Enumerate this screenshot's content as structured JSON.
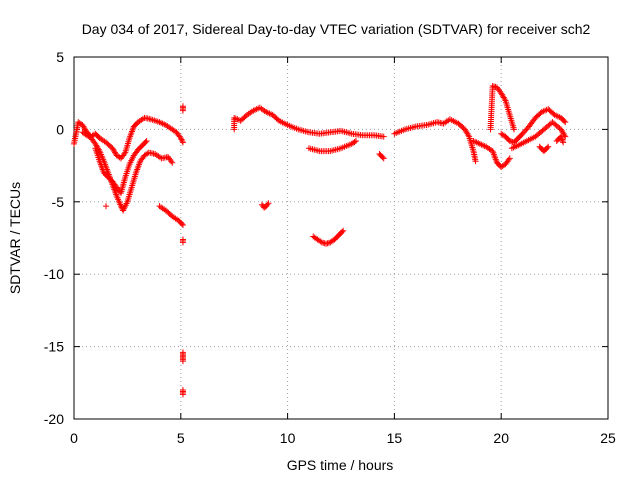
{
  "chart_data": {
    "type": "scatter",
    "title": "Day 034 of 2017, Sidereal Day-to-day VTEC variation (SDTVAR) for receiver sch2",
    "xlabel": "GPS time / hours",
    "ylabel": "SDTVAR / TECUs",
    "xlim": [
      0,
      25
    ],
    "ylim": [
      -20,
      5
    ],
    "xticks": [
      "0",
      "5",
      "10",
      "15",
      "20",
      "25"
    ],
    "yticks": [
      "5",
      "0",
      "-5",
      "-10",
      "-15",
      "-20"
    ],
    "grid": true,
    "marker": "+",
    "color": "#ff0000",
    "series": [
      {
        "name": "SDTVAR",
        "segments": [
          [
            [
              0,
              -1.0
            ],
            [
              0.2,
              0.5
            ],
            [
              0.4,
              0.3
            ],
            [
              0.6,
              -0.2
            ],
            [
              0.8,
              -0.5
            ],
            [
              1.0,
              -0.3
            ],
            [
              1.2,
              -0.6
            ],
            [
              1.5,
              -0.9
            ],
            [
              1.8,
              -1.3
            ],
            [
              2.0,
              -1.8
            ],
            [
              2.2,
              -2.0
            ],
            [
              2.4,
              -1.6
            ],
            [
              2.6,
              -0.6
            ],
            [
              2.8,
              0.2
            ],
            [
              3.0,
              0.5
            ],
            [
              3.3,
              0.8
            ],
            [
              3.6,
              0.7
            ],
            [
              4.0,
              0.5
            ],
            [
              4.3,
              0.3
            ],
            [
              4.6,
              0.0
            ],
            [
              4.8,
              -0.2
            ],
            [
              5.0,
              -0.6
            ],
            [
              5.1,
              -0.9
            ]
          ],
          [
            [
              0.4,
              -0.2
            ],
            [
              0.8,
              -0.6
            ],
            [
              1.0,
              -1.0
            ],
            [
              1.2,
              -1.5
            ],
            [
              1.4,
              -2.2
            ],
            [
              1.6,
              -3.0
            ],
            [
              1.8,
              -3.8
            ],
            [
              2.0,
              -4.6
            ],
            [
              2.2,
              -5.3
            ],
            [
              2.3,
              -5.6
            ],
            [
              2.5,
              -5.0
            ],
            [
              2.7,
              -4.0
            ],
            [
              2.9,
              -3.0
            ],
            [
              3.1,
              -2.2
            ],
            [
              3.3,
              -1.8
            ],
            [
              3.5,
              -1.6
            ],
            [
              3.8,
              -1.7
            ],
            [
              4.1,
              -2.0
            ],
            [
              4.4,
              -1.9
            ],
            [
              4.6,
              -2.3
            ]
          ],
          [
            [
              1.0,
              -1.3
            ],
            [
              1.2,
              -2.2
            ],
            [
              1.4,
              -3.0
            ],
            [
              1.6,
              -3.3
            ],
            [
              1.8,
              -3.6
            ],
            [
              2.0,
              -4.0
            ],
            [
              2.2,
              -4.4
            ],
            [
              2.4,
              -3.3
            ],
            [
              2.6,
              -2.4
            ],
            [
              2.8,
              -1.8
            ],
            [
              3.0,
              -1.4
            ],
            [
              3.2,
              -1.1
            ],
            [
              3.4,
              -0.8
            ]
          ],
          [
            [
              4.0,
              -5.3
            ],
            [
              4.3,
              -5.6
            ],
            [
              4.6,
              -6.0
            ],
            [
              4.9,
              -6.3
            ],
            [
              5.1,
              -6.6
            ]
          ],
          [
            [
              1.5,
              -5.3
            ]
          ],
          [
            [
              5.1,
              1.6
            ],
            [
              5.1,
              1.3
            ]
          ],
          [
            [
              5.1,
              -7.8
            ],
            [
              5.1,
              -7.6
            ]
          ],
          [
            [
              5.1,
              -15.4
            ],
            [
              5.1,
              -15.7
            ],
            [
              5.1,
              -16.0
            ]
          ],
          [
            [
              5.1,
              -18.0
            ],
            [
              5.1,
              -18.3
            ]
          ],
          [
            [
              7.5,
              0.0
            ],
            [
              7.5,
              0.8
            ],
            [
              7.8,
              0.6
            ],
            [
              8.1,
              1.0
            ],
            [
              8.4,
              1.3
            ],
            [
              8.7,
              1.5
            ],
            [
              9.0,
              1.2
            ],
            [
              9.3,
              1.0
            ],
            [
              9.6,
              0.6
            ],
            [
              10.0,
              0.3
            ],
            [
              10.5,
              0.0
            ],
            [
              11.0,
              -0.2
            ],
            [
              11.5,
              -0.3
            ],
            [
              12.0,
              -0.2
            ],
            [
              12.5,
              -0.1
            ],
            [
              13.0,
              -0.3
            ],
            [
              13.5,
              -0.4
            ],
            [
              14.0,
              -0.4
            ],
            [
              14.5,
              -0.5
            ]
          ],
          [
            [
              11.0,
              -1.3
            ],
            [
              11.5,
              -1.5
            ],
            [
              12.0,
              -1.5
            ],
            [
              12.5,
              -1.3
            ],
            [
              13.0,
              -1.0
            ],
            [
              13.2,
              -0.8
            ]
          ],
          [
            [
              8.8,
              -5.2
            ],
            [
              8.9,
              -5.4
            ],
            [
              9.0,
              -5.3
            ],
            [
              9.1,
              -5.1
            ]
          ],
          [
            [
              11.2,
              -7.4
            ],
            [
              11.4,
              -7.6
            ],
            [
              11.6,
              -7.8
            ],
            [
              11.8,
              -7.9
            ],
            [
              12.0,
              -7.8
            ],
            [
              12.2,
              -7.6
            ],
            [
              12.4,
              -7.3
            ],
            [
              12.6,
              -7.0
            ]
          ],
          [
            [
              14.3,
              -1.7
            ],
            [
              14.5,
              -2.0
            ]
          ],
          [
            [
              15.0,
              -0.3
            ],
            [
              15.5,
              0.0
            ],
            [
              16.0,
              0.2
            ],
            [
              16.5,
              0.3
            ],
            [
              17.0,
              0.5
            ],
            [
              17.3,
              0.4
            ],
            [
              17.6,
              0.7
            ],
            [
              18.0,
              0.4
            ],
            [
              18.3,
              0.0
            ],
            [
              18.5,
              -0.5
            ],
            [
              18.7,
              -1.5
            ],
            [
              18.8,
              -2.2
            ]
          ],
          [
            [
              18.7,
              -0.8
            ],
            [
              19.0,
              -1.0
            ],
            [
              19.3,
              -1.2
            ],
            [
              19.6,
              -1.5
            ],
            [
              19.8,
              -2.3
            ],
            [
              20.0,
              -2.6
            ],
            [
              20.2,
              -2.4
            ],
            [
              20.4,
              -2.0
            ]
          ],
          [
            [
              19.5,
              0.0
            ],
            [
              19.6,
              3.0
            ],
            [
              19.8,
              2.9
            ],
            [
              20.0,
              2.5
            ],
            [
              20.2,
              2.0
            ],
            [
              20.4,
              1.0
            ],
            [
              20.6,
              0.0
            ]
          ],
          [
            [
              20.0,
              -0.3
            ],
            [
              20.2,
              -0.5
            ],
            [
              20.4,
              -0.8
            ],
            [
              20.6,
              -0.9
            ],
            [
              20.8,
              -0.6
            ],
            [
              21.0,
              -0.3
            ],
            [
              21.3,
              0.2
            ],
            [
              21.6,
              0.8
            ],
            [
              21.9,
              1.2
            ],
            [
              22.2,
              1.4
            ],
            [
              22.5,
              1.0
            ],
            [
              22.8,
              0.8
            ],
            [
              23.0,
              0.5
            ]
          ],
          [
            [
              20.5,
              -1.3
            ],
            [
              20.8,
              -1.1
            ],
            [
              21.2,
              -0.8
            ],
            [
              21.6,
              -0.5
            ],
            [
              22.0,
              0.0
            ],
            [
              22.4,
              0.5
            ],
            [
              22.8,
              0.0
            ],
            [
              23.0,
              -0.5
            ]
          ],
          [
            [
              21.8,
              -1.2
            ],
            [
              22.0,
              -1.5
            ],
            [
              22.2,
              -1.2
            ]
          ],
          [
            [
              22.6,
              -0.8
            ],
            [
              22.8,
              -0.5
            ],
            [
              22.9,
              -0.9
            ]
          ]
        ]
      }
    ]
  }
}
